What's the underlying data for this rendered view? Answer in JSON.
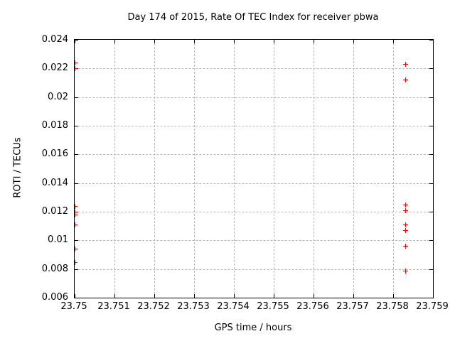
{
  "chart_data": {
    "type": "scatter",
    "title": "Day 174 of 2015, Rate Of TEC Index for receiver pbwa",
    "xlabel": "GPS time / hours",
    "ylabel": "ROTI / TECUs",
    "xlim": [
      23.75,
      23.759
    ],
    "ylim": [
      0.006,
      0.024
    ],
    "xtick_labels": [
      "23.75",
      "23.751",
      "23.752",
      "23.753",
      "23.754",
      "23.755",
      "23.756",
      "23.757",
      "23.758",
      "23.759"
    ],
    "ytick_labels": [
      "0.006",
      "0.008",
      "0.01",
      "0.012",
      "0.014",
      "0.016",
      "0.018",
      "0.02",
      "0.022",
      "0.024"
    ],
    "grid": true,
    "legend": "none",
    "marker": "plus",
    "marker_color": "#ff0000",
    "series": [
      {
        "name": "ROTI",
        "points": [
          [
            23.75,
            0.0224
          ],
          [
            23.75,
            0.022
          ],
          [
            23.75,
            0.0124
          ],
          [
            23.75,
            0.012
          ],
          [
            23.75,
            0.0118
          ],
          [
            23.75,
            0.0111
          ],
          [
            23.75,
            0.0094
          ],
          [
            23.75,
            0.0085
          ],
          [
            23.7583,
            0.0223
          ],
          [
            23.7583,
            0.0212
          ],
          [
            23.7583,
            0.0125
          ],
          [
            23.7583,
            0.0121
          ],
          [
            23.7583,
            0.0111
          ],
          [
            23.7583,
            0.0107
          ],
          [
            23.7583,
            0.0096
          ],
          [
            23.7583,
            0.0079
          ]
        ]
      }
    ]
  }
}
